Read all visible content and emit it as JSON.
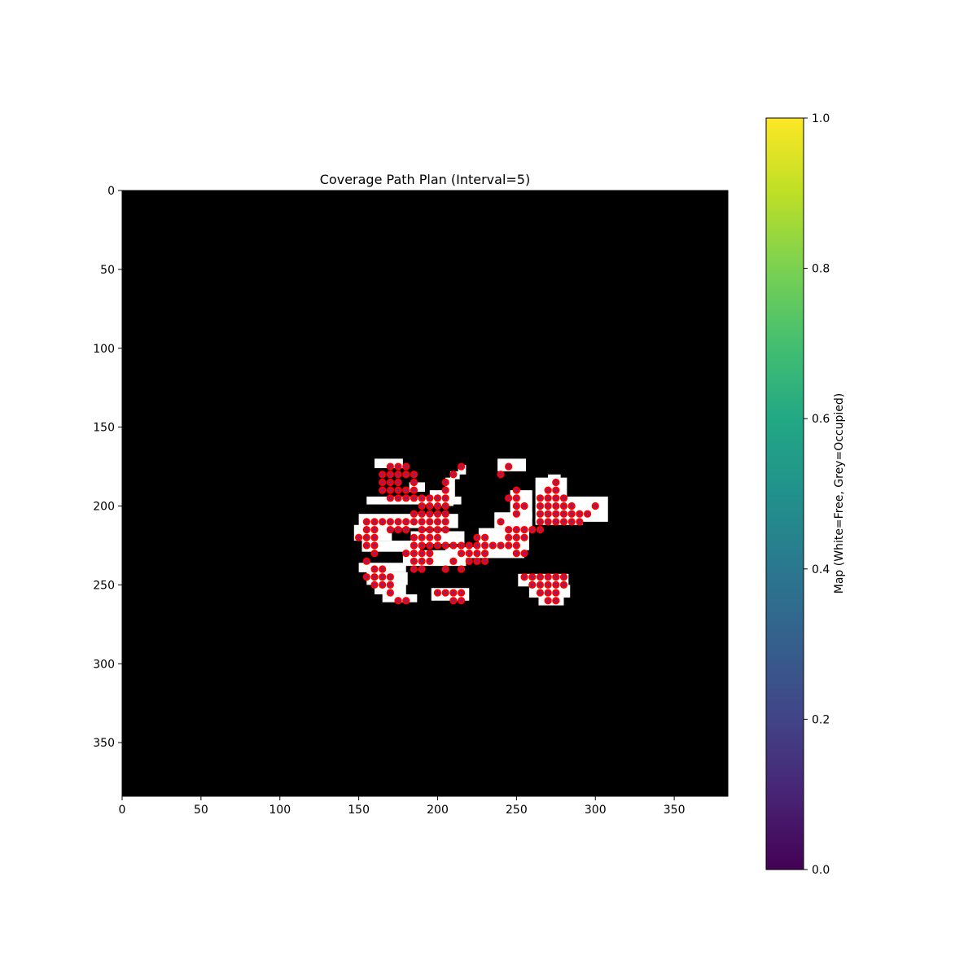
{
  "chart_data": {
    "type": "heatmap",
    "title": "Coverage Path Plan (Interval=5)",
    "image_extent": {
      "x": [
        0,
        384
      ],
      "y": [
        0,
        384
      ]
    },
    "y_inverted": true,
    "x_ticks": [
      0,
      50,
      100,
      150,
      200,
      250,
      300,
      350
    ],
    "y_ticks": [
      0,
      50,
      100,
      150,
      200,
      250,
      300,
      350
    ],
    "x_tick_labels": [
      "0",
      "50",
      "100",
      "150",
      "200",
      "250",
      "300",
      "350"
    ],
    "y_tick_labels": [
      "0",
      "50",
      "100",
      "150",
      "200",
      "250",
      "300",
      "350"
    ],
    "background_color": "#000000",
    "free_color": "#ffffff",
    "point_color": "#ff0000",
    "waypoint_path_color": "#2a3cc8",
    "path_points": [
      [
        165,
        180
      ],
      [
        170,
        175
      ],
      [
        175,
        175
      ],
      [
        180,
        175
      ],
      [
        170,
        180
      ],
      [
        175,
        180
      ],
      [
        180,
        180
      ],
      [
        185,
        180
      ],
      [
        165,
        185
      ],
      [
        170,
        185
      ],
      [
        175,
        185
      ],
      [
        185,
        185
      ],
      [
        165,
        190
      ],
      [
        170,
        190
      ],
      [
        175,
        190
      ],
      [
        180,
        190
      ],
      [
        185,
        190
      ],
      [
        170,
        195
      ],
      [
        175,
        195
      ],
      [
        180,
        195
      ],
      [
        185,
        195
      ],
      [
        190,
        195
      ],
      [
        195,
        195
      ],
      [
        200,
        195
      ],
      [
        205,
        195
      ],
      [
        190,
        200
      ],
      [
        195,
        200
      ],
      [
        200,
        200
      ],
      [
        205,
        200
      ],
      [
        185,
        205
      ],
      [
        190,
        205
      ],
      [
        195,
        205
      ],
      [
        200,
        205
      ],
      [
        205,
        205
      ],
      [
        155,
        210
      ],
      [
        160,
        210
      ],
      [
        165,
        210
      ],
      [
        170,
        210
      ],
      [
        175,
        210
      ],
      [
        180,
        210
      ],
      [
        185,
        210
      ],
      [
        190,
        210
      ],
      [
        195,
        210
      ],
      [
        200,
        210
      ],
      [
        205,
        210
      ],
      [
        155,
        215
      ],
      [
        160,
        215
      ],
      [
        170,
        215
      ],
      [
        175,
        215
      ],
      [
        180,
        215
      ],
      [
        190,
        215
      ],
      [
        195,
        215
      ],
      [
        200,
        215
      ],
      [
        205,
        215
      ],
      [
        150,
        220
      ],
      [
        155,
        220
      ],
      [
        160,
        220
      ],
      [
        185,
        220
      ],
      [
        190,
        220
      ],
      [
        195,
        220
      ],
      [
        200,
        220
      ],
      [
        225,
        220
      ],
      [
        230,
        220
      ],
      [
        155,
        225
      ],
      [
        160,
        225
      ],
      [
        185,
        225
      ],
      [
        190,
        225
      ],
      [
        195,
        225
      ],
      [
        200,
        225
      ],
      [
        205,
        225
      ],
      [
        210,
        225
      ],
      [
        215,
        225
      ],
      [
        220,
        225
      ],
      [
        225,
        225
      ],
      [
        230,
        225
      ],
      [
        235,
        225
      ],
      [
        240,
        225
      ],
      [
        245,
        225
      ],
      [
        250,
        225
      ],
      [
        160,
        230
      ],
      [
        180,
        230
      ],
      [
        185,
        230
      ],
      [
        190,
        230
      ],
      [
        195,
        230
      ],
      [
        215,
        230
      ],
      [
        220,
        230
      ],
      [
        225,
        230
      ],
      [
        230,
        230
      ],
      [
        250,
        230
      ],
      [
        255,
        230
      ],
      [
        185,
        235
      ],
      [
        190,
        235
      ],
      [
        195,
        235
      ],
      [
        210,
        235
      ],
      [
        220,
        235
      ],
      [
        225,
        235
      ],
      [
        230,
        235
      ],
      [
        155,
        235
      ],
      [
        160,
        240
      ],
      [
        165,
        240
      ],
      [
        185,
        240
      ],
      [
        190,
        240
      ],
      [
        205,
        240
      ],
      [
        215,
        240
      ],
      [
        160,
        245
      ],
      [
        165,
        245
      ],
      [
        170,
        245
      ],
      [
        155,
        245
      ],
      [
        160,
        250
      ],
      [
        165,
        250
      ],
      [
        170,
        250
      ],
      [
        170,
        255
      ],
      [
        175,
        260
      ],
      [
        180,
        260
      ],
      [
        200,
        255
      ],
      [
        205,
        255
      ],
      [
        210,
        255
      ],
      [
        215,
        255
      ],
      [
        210,
        260
      ],
      [
        215,
        260
      ],
      [
        205,
        185
      ],
      [
        205,
        190
      ],
      [
        210,
        180
      ],
      [
        215,
        175
      ],
      [
        245,
        175
      ],
      [
        240,
        180
      ],
      [
        245,
        195
      ],
      [
        250,
        190
      ],
      [
        250,
        195
      ],
      [
        250,
        200
      ],
      [
        255,
        200
      ],
      [
        250,
        205
      ],
      [
        240,
        210
      ],
      [
        245,
        215
      ],
      [
        250,
        215
      ],
      [
        255,
        215
      ],
      [
        260,
        215
      ],
      [
        265,
        215
      ],
      [
        245,
        220
      ],
      [
        250,
        220
      ],
      [
        255,
        220
      ],
      [
        265,
        195
      ],
      [
        270,
        190
      ],
      [
        275,
        190
      ],
      [
        275,
        185
      ],
      [
        270,
        195
      ],
      [
        275,
        195
      ],
      [
        280,
        195
      ],
      [
        265,
        200
      ],
      [
        270,
        200
      ],
      [
        275,
        200
      ],
      [
        280,
        200
      ],
      [
        285,
        200
      ],
      [
        300,
        200
      ],
      [
        265,
        205
      ],
      [
        270,
        205
      ],
      [
        275,
        205
      ],
      [
        280,
        205
      ],
      [
        285,
        205
      ],
      [
        290,
        205
      ],
      [
        295,
        205
      ],
      [
        265,
        210
      ],
      [
        270,
        210
      ],
      [
        275,
        210
      ],
      [
        280,
        210
      ],
      [
        285,
        210
      ],
      [
        290,
        210
      ],
      [
        255,
        245
      ],
      [
        260,
        245
      ],
      [
        265,
        245
      ],
      [
        270,
        245
      ],
      [
        275,
        245
      ],
      [
        280,
        245
      ],
      [
        260,
        250
      ],
      [
        265,
        250
      ],
      [
        270,
        250
      ],
      [
        275,
        250
      ],
      [
        280,
        250
      ],
      [
        265,
        255
      ],
      [
        270,
        255
      ],
      [
        275,
        255
      ],
      [
        270,
        260
      ],
      [
        275,
        260
      ]
    ],
    "free_cells": [
      [
        160,
        170,
        18,
        6
      ],
      [
        182,
        185,
        10,
        6
      ],
      [
        155,
        194,
        60,
        5
      ],
      [
        150,
        205,
        63,
        9
      ],
      [
        147,
        212,
        24,
        10
      ],
      [
        183,
        216,
        34,
        8
      ],
      [
        152,
        222,
        37,
        7
      ],
      [
        170,
        222,
        18,
        6
      ],
      [
        178,
        228,
        40,
        10
      ],
      [
        205,
        226,
        50,
        7
      ],
      [
        150,
        236,
        30,
        6
      ],
      [
        155,
        242,
        26,
        8
      ],
      [
        160,
        248,
        20,
        8
      ],
      [
        165,
        256,
        22,
        5
      ],
      [
        196,
        252,
        24,
        8
      ],
      [
        205,
        182,
        6,
        16
      ],
      [
        195,
        190,
        15,
        10
      ],
      [
        213,
        174,
        5,
        6
      ],
      [
        208,
        178,
        6,
        5
      ],
      [
        226,
        214,
        32,
        14
      ],
      [
        238,
        170,
        18,
        8
      ],
      [
        246,
        190,
        14,
        18
      ],
      [
        236,
        204,
        24,
        10
      ],
      [
        262,
        182,
        20,
        12
      ],
      [
        262,
        194,
        46,
        16
      ],
      [
        262,
        208,
        30,
        4
      ],
      [
        251,
        243,
        32,
        8
      ],
      [
        258,
        250,
        26,
        8
      ],
      [
        264,
        257,
        16,
        6
      ],
      [
        270,
        180,
        8,
        6
      ],
      [
        300,
        198,
        6,
        5
      ]
    ],
    "colorbar": {
      "label": "Map (White=Free, Grey=Occupied)",
      "range": [
        0.0,
        1.0
      ],
      "colormap": "viridis",
      "ticks": [
        0.0,
        0.2,
        0.4,
        0.6,
        0.8,
        1.0
      ],
      "tick_labels": [
        "0.0",
        "0.2",
        "0.4",
        "0.6",
        "0.8",
        "1.0"
      ]
    }
  }
}
